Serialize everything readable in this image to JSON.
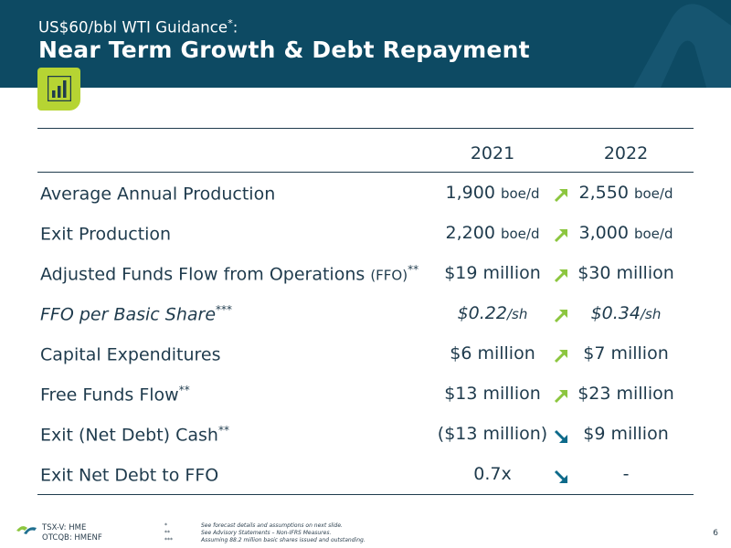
{
  "header": {
    "subtitle": "US$60/bbl WTI Guidance",
    "subtitle_mark": "*",
    "subtitle_colon": ":",
    "title": "Near Term Growth & Debt Repayment"
  },
  "columns": [
    "2021",
    "2022"
  ],
  "rows": [
    {
      "label": "Average Annual Production",
      "label_unit": "",
      "mark": "",
      "v2021": "1,900",
      "u2021": "boe/d",
      "trend": "up",
      "v2022": "2,550",
      "u2022": "boe/d"
    },
    {
      "label": "Exit Production",
      "label_unit": "",
      "mark": "",
      "v2021": "2,200",
      "u2021": "boe/d",
      "trend": "up",
      "v2022": "3,000",
      "u2022": "boe/d"
    },
    {
      "label": "Adjusted Funds Flow from Operations",
      "label_unit": "(FFO)",
      "mark": "**",
      "v2021": "$19 million",
      "u2021": "",
      "trend": "up",
      "v2022": "$30 million",
      "u2022": ""
    },
    {
      "label": "FFO per Basic Share",
      "label_unit": "",
      "mark": "***",
      "v2021": "$0.22",
      "u2021": "/sh",
      "trend": "up",
      "v2022": "$0.34",
      "u2022": "/sh"
    },
    {
      "label": "Capital Expenditures",
      "label_unit": "",
      "mark": "",
      "v2021": "$6 million",
      "u2021": "",
      "trend": "up",
      "v2022": "$7 million",
      "u2022": ""
    },
    {
      "label": "Free Funds Flow",
      "label_unit": "",
      "mark": "**",
      "v2021": "$13 million",
      "u2021": "",
      "trend": "up",
      "v2022": "$23 million",
      "u2022": ""
    },
    {
      "label": "Exit (Net Debt) Cash",
      "label_unit": "",
      "mark": "**",
      "v2021": "($13 million)",
      "u2021": "",
      "trend": "down",
      "v2022": "$9 million",
      "u2022": ""
    },
    {
      "label": "Exit Net Debt to FFO",
      "label_unit": "",
      "mark": "",
      "v2021": "0.7x",
      "u2021": "",
      "trend": "down",
      "v2022": "-",
      "u2022": ""
    }
  ],
  "colors": {
    "header_bg": "#0d4a63",
    "accent_green": "#8cc63f",
    "arrow_down": "#0d6a8a",
    "text": "#1f3b4d"
  },
  "footer": {
    "ticker1": "TSX-V: HME",
    "ticker2": "OTCQB: HMENF",
    "notes": [
      {
        "mark": "*",
        "text": "See forecast details and assumptions on next slide."
      },
      {
        "mark": "**",
        "text": "See Advisory Statements – Non-IFRS Measures."
      },
      {
        "mark": "***",
        "text": "Assuming 88.2 million basic shares issued and outstanding."
      }
    ],
    "page": "6"
  },
  "icons": {
    "header_icon": "bar-chart-icon",
    "up": "arrow-up-right-icon",
    "down": "arrow-down-right-icon"
  }
}
